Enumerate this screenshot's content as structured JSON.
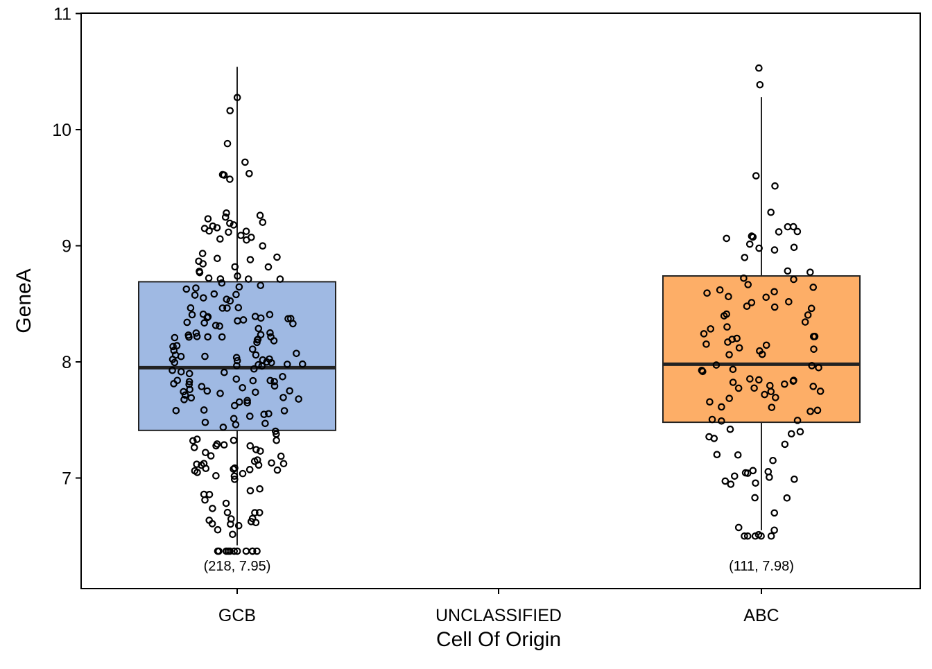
{
  "chart_data": {
    "type": "box",
    "title": "",
    "xlabel": "Cell Of Origin",
    "ylabel": "GeneA",
    "categories": [
      "GCB",
      "UNCLASSIFIED",
      "ABC"
    ],
    "ylim": [
      6.05,
      11.0
    ],
    "yticks": [
      7,
      8,
      9,
      10,
      11
    ],
    "grid": false,
    "legend": "none",
    "boxes": [
      {
        "category": "GCB",
        "n": 218,
        "median": 7.95,
        "q1": 7.41,
        "q3": 8.69,
        "whisker_low": 6.42,
        "whisker_high": 10.54,
        "color": "#9fb9e3",
        "annotation": "(218, 7.95)"
      },
      {
        "category": "ABC",
        "n": 111,
        "median": 7.98,
        "q1": 7.48,
        "q3": 8.74,
        "whisker_low": 6.55,
        "whisker_high": 10.28,
        "color": "#fdae67",
        "annotation": "(111, 7.98)"
      }
    ]
  }
}
